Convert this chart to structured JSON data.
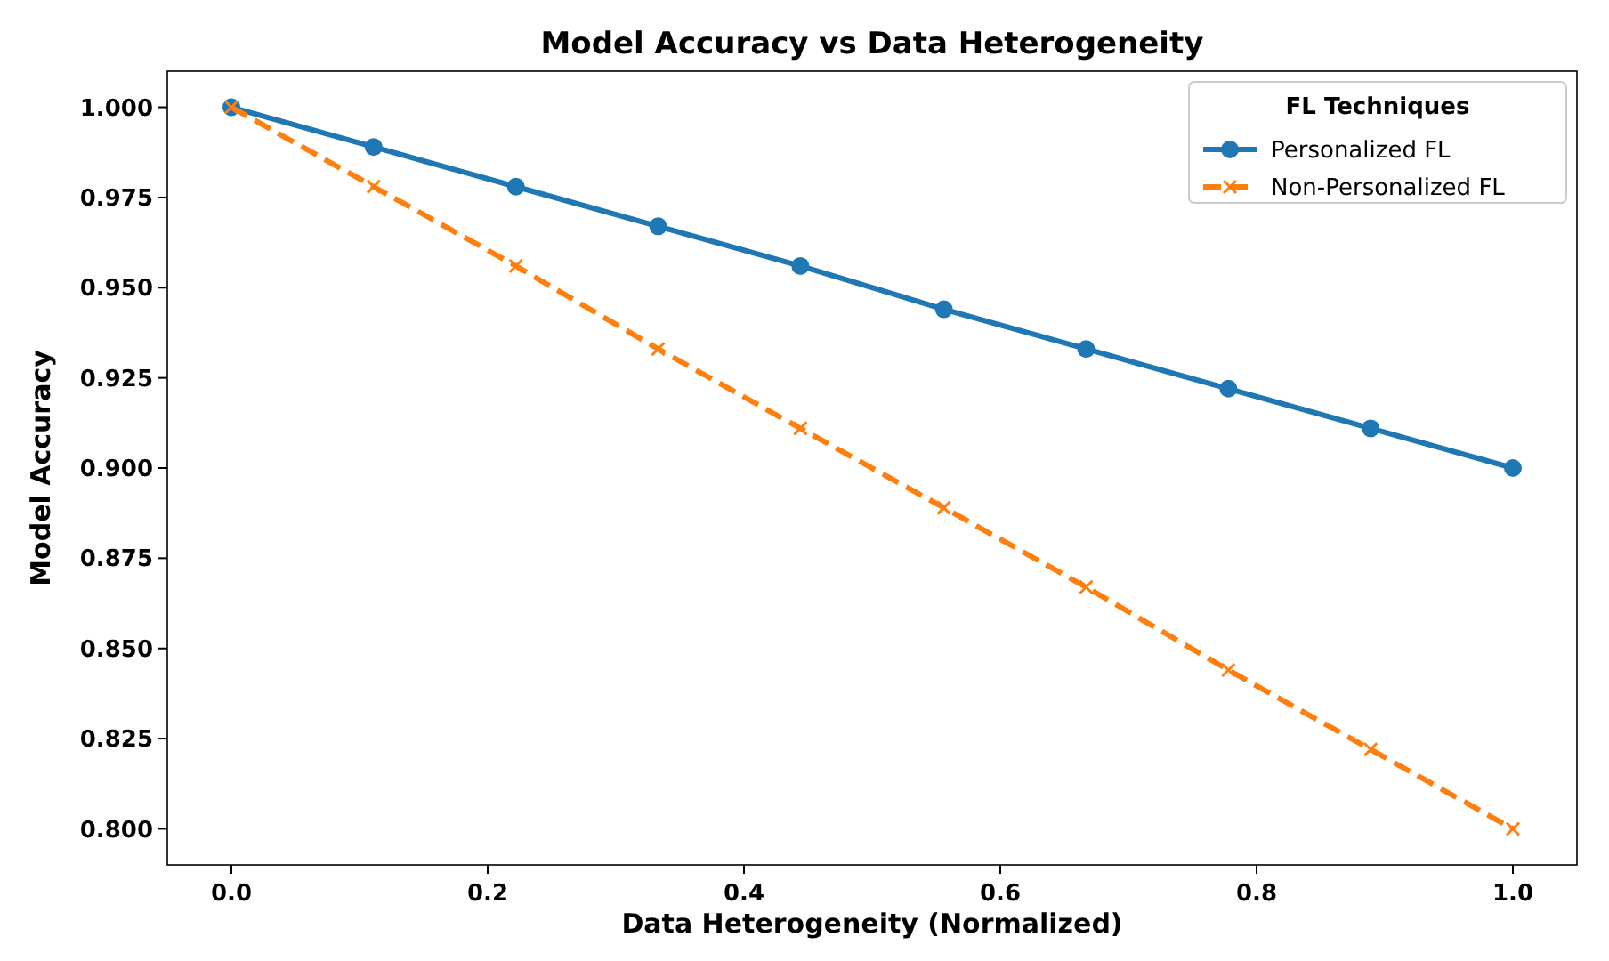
{
  "chart_data": {
    "type": "line",
    "title": "Model Accuracy vs Data Heterogeneity",
    "xlabel": "Data Heterogeneity (Normalized)",
    "ylabel": "Model Accuracy",
    "legend_title": "FL Techniques",
    "legend": "top right",
    "grid": false,
    "x": [
      0,
      0.111,
      0.222,
      0.333,
      0.444,
      0.556,
      0.667,
      0.778,
      0.889,
      1
    ],
    "xlim": [
      -0.05,
      1.05
    ],
    "xticks": [
      {
        "value": 0,
        "label": "0.0"
      },
      {
        "value": 0.2,
        "label": "0.2"
      },
      {
        "value": 0.4,
        "label": "0.4"
      },
      {
        "value": 0.6,
        "label": "0.6"
      },
      {
        "value": 0.8,
        "label": "0.8"
      },
      {
        "value": 1,
        "label": "1.0"
      }
    ],
    "ylim": [
      0.79,
      1.01
    ],
    "yticks": [
      {
        "value": 0.8,
        "label": "0.800"
      },
      {
        "value": 0.825,
        "label": "0.825"
      },
      {
        "value": 0.85,
        "label": "0.850"
      },
      {
        "value": 0.875,
        "label": "0.875"
      },
      {
        "value": 0.9,
        "label": "0.900"
      },
      {
        "value": 0.925,
        "label": "0.925"
      },
      {
        "value": 0.95,
        "label": "0.950"
      },
      {
        "value": 0.975,
        "label": "0.975"
      },
      {
        "value": 1,
        "label": "1.000"
      }
    ],
    "series": [
      {
        "name": "Personalized FL",
        "color": "#1f77b4",
        "marker": "circle",
        "line_style": "solid",
        "values": [
          1.0,
          0.989,
          0.978,
          0.967,
          0.956,
          0.944,
          0.933,
          0.922,
          0.911,
          0.9
        ]
      },
      {
        "name": "Non-Personalized FL",
        "color": "#ff7f0e",
        "marker": "cross",
        "line_style": "dashed",
        "values": [
          1.0,
          0.978,
          0.956,
          0.933,
          0.911,
          0.889,
          0.867,
          0.844,
          0.822,
          0.8
        ]
      }
    ]
  }
}
